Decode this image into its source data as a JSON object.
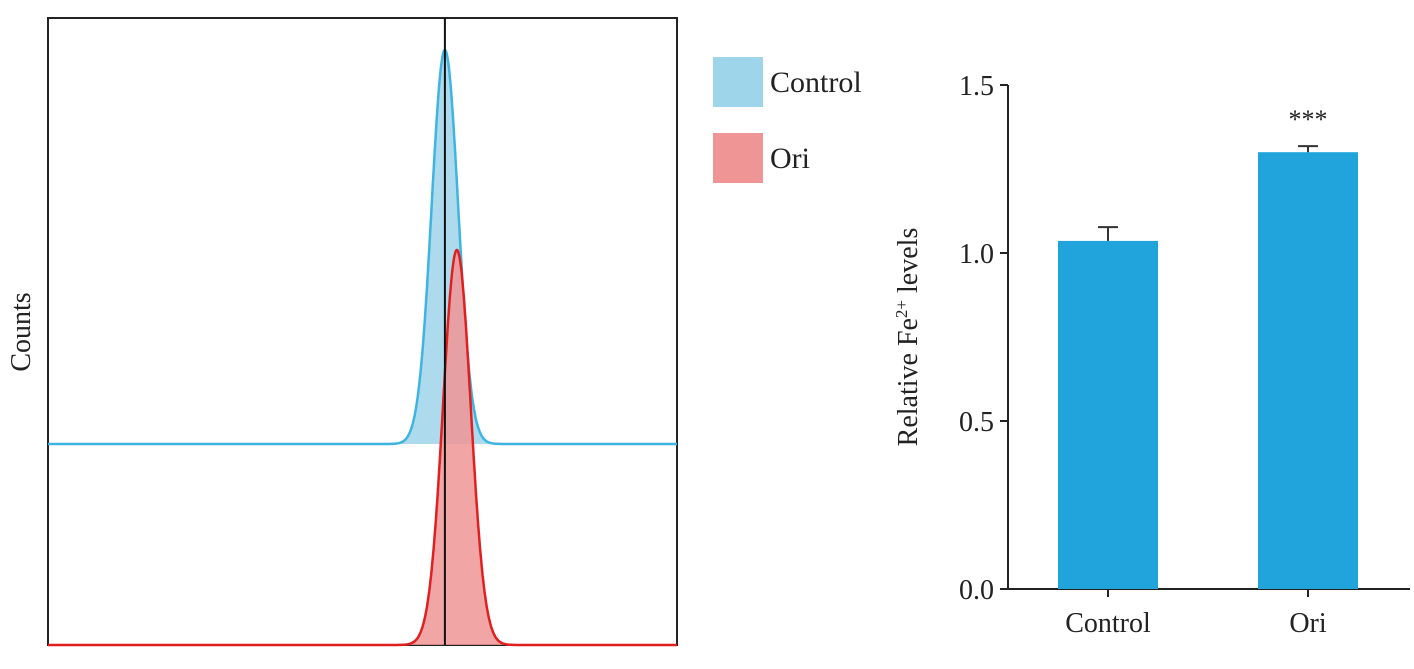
{
  "chart_data": [
    {
      "type": "area",
      "title": "",
      "ylabel": "Counts",
      "xlabel": "",
      "xlim": [
        0,
        1000
      ],
      "gate_x": 631,
      "legend": {
        "placement": "right",
        "entries": [
          {
            "name": "Control",
            "color": "#9fd5ea"
          },
          {
            "name": "Ori",
            "color": "#f09595"
          }
        ]
      },
      "series": [
        {
          "name": "Control",
          "mean": 631,
          "sd": 21,
          "peak": 1.0,
          "line_color": "#3fb4e0",
          "fill_color": "#9fd5ea"
        },
        {
          "name": "Ori",
          "mean": 650,
          "sd": 22,
          "peak": 1.0,
          "line_color": "#e02020",
          "fill_color": "#f09595"
        }
      ]
    },
    {
      "type": "bar",
      "title": "",
      "xlabel": "",
      "ylabel_main": "Relative Fe",
      "ylabel_sup": "2+",
      "ylabel_tail": " levels",
      "ylim": [
        0,
        1.5
      ],
      "yticks": [
        "0.0",
        "0.5",
        "1.0",
        "1.5"
      ],
      "categories": [
        "Control",
        "Ori"
      ],
      "values": [
        1.036,
        1.3
      ],
      "errors": [
        0.041,
        0.018
      ],
      "annotations": [
        "",
        "***"
      ],
      "bar_color": "#21a3dc"
    }
  ]
}
